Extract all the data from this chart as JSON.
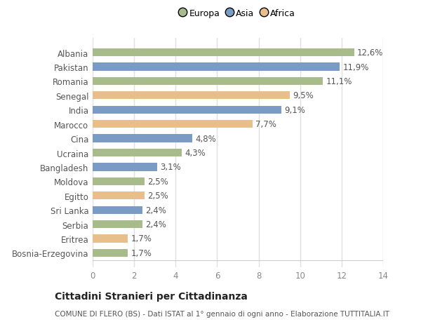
{
  "categories": [
    "Bosnia-Erzegovina",
    "Eritrea",
    "Serbia",
    "Sri Lanka",
    "Egitto",
    "Moldova",
    "Bangladesh",
    "Ucraina",
    "Cina",
    "Marocco",
    "India",
    "Senegal",
    "Romania",
    "Pakistan",
    "Albania"
  ],
  "values": [
    1.7,
    1.7,
    2.4,
    2.4,
    2.5,
    2.5,
    3.1,
    4.3,
    4.8,
    7.7,
    9.1,
    9.5,
    11.1,
    11.9,
    12.6
  ],
  "labels": [
    "1,7%",
    "1,7%",
    "2,4%",
    "2,4%",
    "2,5%",
    "2,5%",
    "3,1%",
    "4,3%",
    "4,8%",
    "7,7%",
    "9,1%",
    "9,5%",
    "11,1%",
    "11,9%",
    "12,6%"
  ],
  "continents": [
    "Europa",
    "Africa",
    "Europa",
    "Asia",
    "Africa",
    "Europa",
    "Asia",
    "Europa",
    "Asia",
    "Africa",
    "Asia",
    "Africa",
    "Europa",
    "Asia",
    "Europa"
  ],
  "colors": {
    "Europa": "#a8bb8a",
    "Asia": "#7a9cc4",
    "Africa": "#e8be8a"
  },
  "xlim": [
    0,
    14
  ],
  "xticks": [
    0,
    2,
    4,
    6,
    8,
    10,
    12,
    14
  ],
  "title": "Cittadini Stranieri per Cittadinanza",
  "subtitle": "COMUNE DI FLERO (BS) - Dati ISTAT al 1° gennaio di ogni anno - Elaborazione TUTTITALIA.IT",
  "background_color": "#ffffff",
  "bar_height": 0.55,
  "grid_color": "#e0e0e0",
  "label_fontsize": 8.5,
  "tick_fontsize": 8.5,
  "ytick_fontsize": 8.5,
  "title_fontsize": 10,
  "subtitle_fontsize": 7.5,
  "legend_order": [
    "Europa",
    "Asia",
    "Africa"
  ]
}
